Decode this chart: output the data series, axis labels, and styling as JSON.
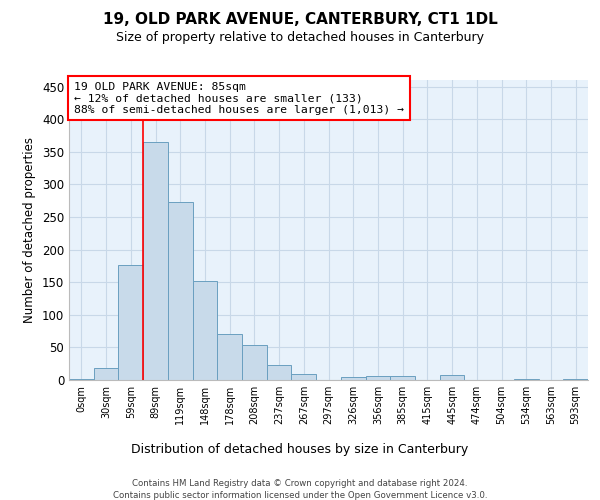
{
  "title": "19, OLD PARK AVENUE, CANTERBURY, CT1 1DL",
  "subtitle": "Size of property relative to detached houses in Canterbury",
  "xlabel": "Distribution of detached houses by size in Canterbury",
  "ylabel": "Number of detached properties",
  "bar_color": "#c8daea",
  "bar_edge_color": "#6a9fc0",
  "categories": [
    "0sqm",
    "30sqm",
    "59sqm",
    "89sqm",
    "119sqm",
    "148sqm",
    "178sqm",
    "208sqm",
    "237sqm",
    "267sqm",
    "297sqm",
    "326sqm",
    "356sqm",
    "385sqm",
    "415sqm",
    "445sqm",
    "474sqm",
    "504sqm",
    "534sqm",
    "563sqm",
    "593sqm"
  ],
  "values": [
    2,
    18,
    176,
    365,
    273,
    152,
    70,
    54,
    23,
    9,
    0,
    5,
    6,
    6,
    0,
    8,
    0,
    0,
    2,
    0,
    2
  ],
  "marker_bar_index": 3,
  "annotation_text": "19 OLD PARK AVENUE: 85sqm\n← 12% of detached houses are smaller (133)\n88% of semi-detached houses are larger (1,013) →",
  "annotation_box_color": "white",
  "annotation_box_edge_color": "red",
  "grid_color": "#c8d8e8",
  "ylim": [
    0,
    460
  ],
  "yticks": [
    0,
    50,
    100,
    150,
    200,
    250,
    300,
    350,
    400,
    450
  ],
  "footer1": "Contains HM Land Registry data © Crown copyright and database right 2024.",
  "footer2": "Contains public sector information licensed under the Open Government Licence v3.0.",
  "bg_color": "#e8f2fb"
}
